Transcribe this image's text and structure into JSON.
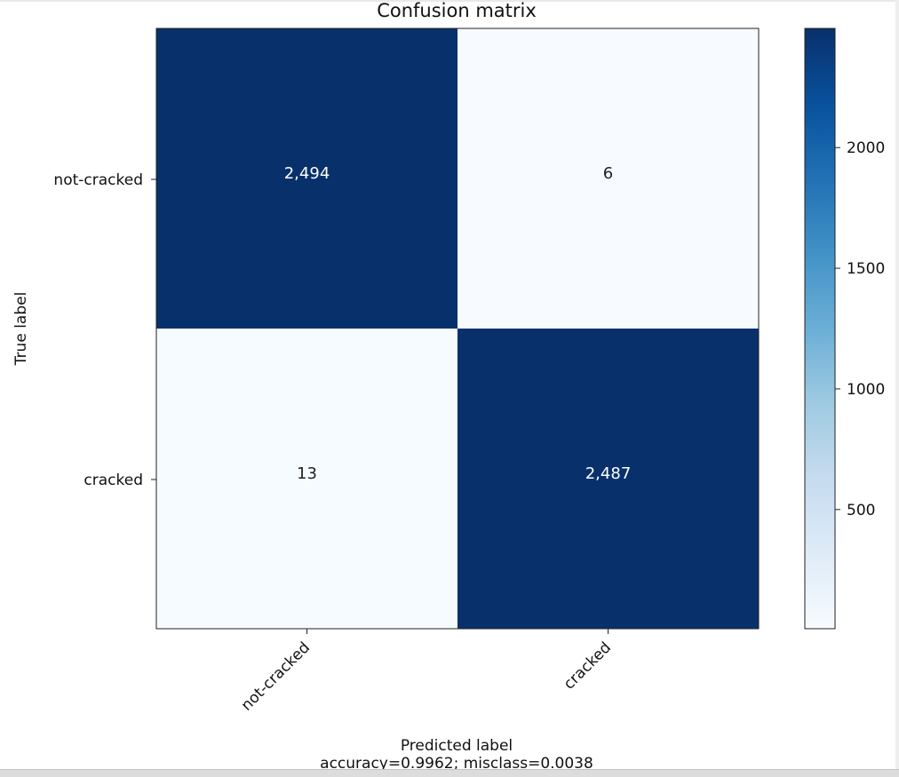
{
  "chart_data": {
    "type": "heatmap",
    "title": "Confusion matrix",
    "xlabel": "Predicted label",
    "ylabel": "True label",
    "footer": "accuracy=0.9962; misclass=0.0038",
    "row_labels": [
      "not-cracked",
      "cracked"
    ],
    "col_labels": [
      "not-cracked",
      "cracked"
    ],
    "cells": [
      [
        {
          "value": 2494,
          "label": "2,494"
        },
        {
          "value": 6,
          "label": "6"
        }
      ],
      [
        {
          "value": 13,
          "label": "13"
        },
        {
          "value": 2487,
          "label": "2,487"
        }
      ]
    ],
    "colorbar": {
      "colormap": "Blues",
      "range": [
        6,
        2494
      ],
      "ticks": [
        "500",
        "1000",
        "1500",
        "2000"
      ],
      "tick_values": [
        500,
        1000,
        1500,
        2000
      ]
    },
    "colors": {
      "high": "#08306b",
      "low": "#f7fbff",
      "text_on_dark": "#ffffff",
      "text_on_light": "#222222"
    }
  }
}
